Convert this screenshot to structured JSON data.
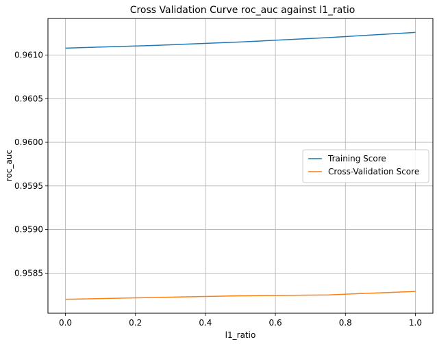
{
  "chart_data": {
    "type": "line",
    "title": "Cross Validation Curve roc_auc against l1_ratio",
    "xlabel": "l1_ratio",
    "ylabel": "roc_auc",
    "x": [
      0.0,
      0.25,
      0.5,
      0.75,
      1.0
    ],
    "series": [
      {
        "name": "Training Score",
        "color": "#1f77b4",
        "values": [
          0.96108,
          0.96111,
          0.96115,
          0.9612,
          0.96126
        ]
      },
      {
        "name": "Cross-Validation Score",
        "color": "#ff7f0e",
        "values": [
          0.9582,
          0.95822,
          0.95824,
          0.95825,
          0.95829
        ]
      }
    ],
    "xlim": [
      -0.05,
      1.05
    ],
    "ylim": [
      0.95804,
      0.96142
    ],
    "xticks": [
      0.0,
      0.2,
      0.4,
      0.6,
      0.8,
      1.0
    ],
    "xtick_labels": [
      "0.0",
      "0.2",
      "0.4",
      "0.6",
      "0.8",
      "1.0"
    ],
    "yticks": [
      0.9585,
      0.959,
      0.9595,
      0.96,
      0.9605,
      0.961
    ],
    "ytick_labels": [
      "0.9585",
      "0.9590",
      "0.9595",
      "0.9600",
      "0.9605",
      "0.9610"
    ],
    "grid": true,
    "legend_position": "center-right"
  }
}
